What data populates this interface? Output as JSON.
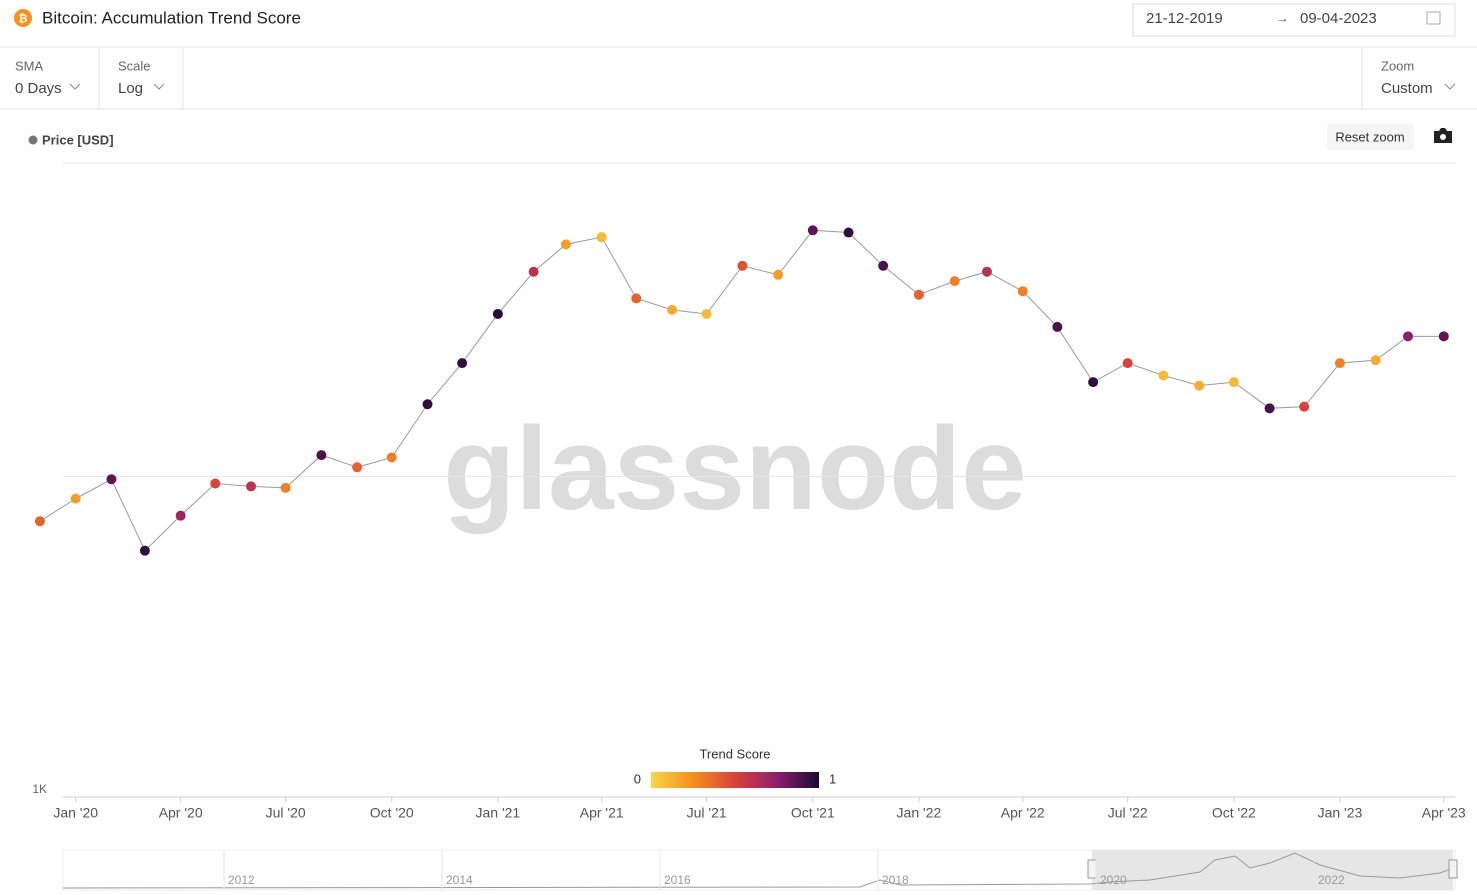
{
  "header": {
    "title": "Bitcoin: Accumulation Trend Score",
    "date_from": "21-12-2019",
    "date_to": "09-04-2023"
  },
  "controls": [
    {
      "label": "SMA",
      "value": "0 Days"
    },
    {
      "label": "Scale",
      "value": "Log"
    },
    {
      "label": "Zoom",
      "value": "Custom"
    }
  ],
  "toolbar": {
    "reset_zoom": "Reset zoom"
  },
  "watermark": "glassnode",
  "chart_data": {
    "type": "scatter",
    "log_scale": true,
    "grid": true,
    "x": [
      "2019-12",
      "2020-01",
      "2020-02",
      "2020-03",
      "2020-04",
      "2020-05",
      "2020-06",
      "2020-07",
      "2020-08",
      "2020-09",
      "2020-10",
      "2020-11",
      "2020-12",
      "2021-01",
      "2021-02",
      "2021-03",
      "2021-04",
      "2021-05",
      "2021-06",
      "2021-07",
      "2021-08",
      "2021-09",
      "2021-10",
      "2021-11",
      "2021-12",
      "2022-01",
      "2022-02",
      "2022-03",
      "2022-04",
      "2022-05",
      "2022-06",
      "2022-07",
      "2022-08",
      "2022-09",
      "2022-10",
      "2022-11",
      "2022-12",
      "2023-01",
      "2023-02",
      "2023-03",
      "2023-04"
    ],
    "series": [
      {
        "name": "Price [USD]",
        "line_color": "#9a9a9a",
        "values": [
          7200,
          8500,
          9800,
          5800,
          7500,
          9500,
          9300,
          9200,
          11700,
          10700,
          11500,
          17000,
          23000,
          33000,
          45000,
          55000,
          58000,
          37000,
          34000,
          33000,
          47000,
          44000,
          61000,
          60000,
          47000,
          38000,
          42000,
          45000,
          39000,
          30000,
          20000,
          23000,
          21000,
          19500,
          20000,
          16500,
          16700,
          23000,
          23500,
          28000,
          28000
        ],
        "scores": [
          0.4,
          0.2,
          0.85,
          0.95,
          0.7,
          0.5,
          0.6,
          0.3,
          0.9,
          0.4,
          0.3,
          0.95,
          0.95,
          0.98,
          0.6,
          0.2,
          0.1,
          0.4,
          0.15,
          0.1,
          0.45,
          0.2,
          0.85,
          0.95,
          0.9,
          0.4,
          0.3,
          0.6,
          0.3,
          0.9,
          0.95,
          0.5,
          0.1,
          0.15,
          0.1,
          0.9,
          0.5,
          0.3,
          0.15,
          0.75,
          0.85
        ]
      }
    ],
    "xlim": [
      "2019-12-21",
      "2023-04-09"
    ],
    "xticks": [
      {
        "value": "2020-01",
        "label": "Jan '20"
      },
      {
        "value": "2020-04",
        "label": "Apr '20"
      },
      {
        "value": "2020-07",
        "label": "Jul '20"
      },
      {
        "value": "2020-10",
        "label": "Oct '20"
      },
      {
        "value": "2021-01",
        "label": "Jan '21"
      },
      {
        "value": "2021-04",
        "label": "Apr '21"
      },
      {
        "value": "2021-07",
        "label": "Jul '21"
      },
      {
        "value": "2021-10",
        "label": "Oct '21"
      },
      {
        "value": "2022-01",
        "label": "Jan '22"
      },
      {
        "value": "2022-04",
        "label": "Apr '22"
      },
      {
        "value": "2022-07",
        "label": "Jul '22"
      },
      {
        "value": "2022-10",
        "label": "Oct '22"
      },
      {
        "value": "2023-01",
        "label": "Jan '23"
      },
      {
        "value": "2023-04",
        "label": "Apr '23"
      }
    ],
    "ylim": [
      1000,
      100000
    ],
    "yticks": [
      {
        "value": 1000,
        "label": "1K"
      },
      {
        "value": 10000,
        "label": null
      },
      {
        "value": 100000,
        "label": null
      }
    ],
    "colorbar_title": "Trend Score",
    "colorbar_range": [
      0,
      1
    ],
    "colorscale": [
      "#f7d64a",
      "#f4901e",
      "#d8433a",
      "#8e1e6e",
      "#1a0a33"
    ],
    "navigator_labels": [
      "2012",
      "2014",
      "2016",
      "2018",
      "2020",
      "2022"
    ]
  }
}
